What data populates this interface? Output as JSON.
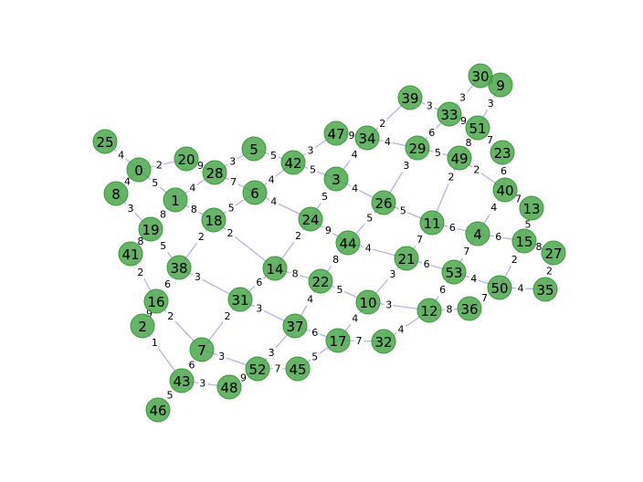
{
  "graph": {
    "node_color": "#4ca64c",
    "edge_color": "#b3b3ee",
    "nodes": [
      {
        "id": "0"
      },
      {
        "id": "1"
      },
      {
        "id": "2"
      },
      {
        "id": "4"
      },
      {
        "id": "5"
      },
      {
        "id": "6"
      },
      {
        "id": "7"
      },
      {
        "id": "8"
      },
      {
        "id": "9"
      },
      {
        "id": "10"
      },
      {
        "id": "11"
      },
      {
        "id": "12"
      },
      {
        "id": "13"
      },
      {
        "id": "14"
      },
      {
        "id": "15"
      },
      {
        "id": "16"
      },
      {
        "id": "17"
      },
      {
        "id": "18"
      },
      {
        "id": "19"
      },
      {
        "id": "20"
      },
      {
        "id": "21"
      },
      {
        "id": "22"
      },
      {
        "id": "23"
      },
      {
        "id": "24"
      },
      {
        "id": "25"
      },
      {
        "id": "26"
      },
      {
        "id": "27"
      },
      {
        "id": "28"
      },
      {
        "id": "29"
      },
      {
        "id": "30"
      },
      {
        "id": "31"
      },
      {
        "id": "32"
      },
      {
        "id": "33"
      },
      {
        "id": "34"
      },
      {
        "id": "35"
      },
      {
        "id": "36"
      },
      {
        "id": "37"
      },
      {
        "id": "38"
      },
      {
        "id": "39"
      },
      {
        "id": "40"
      },
      {
        "id": "41"
      },
      {
        "id": "42"
      },
      {
        "id": "43"
      },
      {
        "id": "44"
      },
      {
        "id": "45"
      },
      {
        "id": "46"
      },
      {
        "id": "47"
      },
      {
        "id": "48"
      },
      {
        "id": "49"
      },
      {
        "id": "50"
      },
      {
        "id": "51"
      },
      {
        "id": "52"
      },
      {
        "id": "53"
      },
      {
        "id": "3"
      }
    ],
    "edges": [
      {
        "s": "25",
        "t": "0",
        "w": "4"
      },
      {
        "s": "0",
        "t": "20",
        "w": "2"
      },
      {
        "s": "0",
        "t": "1",
        "w": "5"
      },
      {
        "s": "0",
        "t": "8",
        "w": "4"
      },
      {
        "s": "20",
        "t": "28",
        "w": "9"
      },
      {
        "s": "28",
        "t": "5",
        "w": "3"
      },
      {
        "s": "1",
        "t": "28",
        "w": "4"
      },
      {
        "s": "1",
        "t": "19",
        "w": "8"
      },
      {
        "s": "1",
        "t": "18",
        "w": "8"
      },
      {
        "s": "8",
        "t": "19",
        "w": "3"
      },
      {
        "s": "19",
        "t": "41",
        "w": "8"
      },
      {
        "s": "19",
        "t": "38",
        "w": "5"
      },
      {
        "s": "28",
        "t": "6",
        "w": "7"
      },
      {
        "s": "5",
        "t": "42",
        "w": "5"
      },
      {
        "s": "42",
        "t": "47",
        "w": "3"
      },
      {
        "s": "6",
        "t": "42",
        "w": "4"
      },
      {
        "s": "18",
        "t": "6",
        "w": "5"
      },
      {
        "s": "6",
        "t": "24",
        "w": "4"
      },
      {
        "s": "18",
        "t": "38",
        "w": "2"
      },
      {
        "s": "18",
        "t": "14",
        "w": "2"
      },
      {
        "s": "41",
        "t": "16",
        "w": "2"
      },
      {
        "s": "38",
        "t": "16",
        "w": "6"
      },
      {
        "s": "38",
        "t": "31",
        "w": "3"
      },
      {
        "s": "16",
        "t": "2",
        "w": "9"
      },
      {
        "s": "16",
        "t": "7",
        "w": "2"
      },
      {
        "s": "2",
        "t": "43",
        "w": "1"
      },
      {
        "s": "43",
        "t": "46",
        "w": "5"
      },
      {
        "s": "7",
        "t": "43",
        "w": "6"
      },
      {
        "s": "43",
        "t": "48",
        "w": "3"
      },
      {
        "s": "7",
        "t": "52",
        "w": "3"
      },
      {
        "s": "31",
        "t": "7",
        "w": "2"
      },
      {
        "s": "48",
        "t": "52",
        "w": "9"
      },
      {
        "s": "52",
        "t": "45",
        "w": "7"
      },
      {
        "s": "52",
        "t": "37",
        "w": "3"
      },
      {
        "s": "31",
        "t": "37",
        "w": "3"
      },
      {
        "s": "14",
        "t": "31",
        "w": "6"
      },
      {
        "s": "24",
        "t": "14",
        "w": "2"
      },
      {
        "s": "14",
        "t": "22",
        "w": "8"
      },
      {
        "s": "22",
        "t": "37",
        "w": "4"
      },
      {
        "s": "37",
        "t": "17",
        "w": "6"
      },
      {
        "s": "45",
        "t": "17",
        "w": "5"
      },
      {
        "s": "17",
        "t": "32",
        "w": "7"
      },
      {
        "s": "10",
        "t": "17",
        "w": "4"
      },
      {
        "s": "22",
        "t": "10",
        "w": "5"
      },
      {
        "s": "44",
        "t": "22",
        "w": "8"
      },
      {
        "s": "24",
        "t": "44",
        "w": "9"
      },
      {
        "s": "3",
        "t": "24",
        "w": "5"
      },
      {
        "s": "42",
        "t": "3",
        "w": "5"
      },
      {
        "s": "47",
        "t": "34",
        "w": "9"
      },
      {
        "s": "34",
        "t": "3",
        "w": "4"
      },
      {
        "s": "34",
        "t": "39",
        "w": "2"
      },
      {
        "s": "34",
        "t": "29",
        "w": "4"
      },
      {
        "s": "39",
        "t": "33",
        "w": "3"
      },
      {
        "s": "3",
        "t": "26",
        "w": "4"
      },
      {
        "s": "29",
        "t": "26",
        "w": "3"
      },
      {
        "s": "29",
        "t": "33",
        "w": "6"
      },
      {
        "s": "29",
        "t": "49",
        "w": "5"
      },
      {
        "s": "33",
        "t": "30",
        "w": "3"
      },
      {
        "s": "33",
        "t": "51",
        "w": "9"
      },
      {
        "s": "30",
        "t": "9",
        "w": "3"
      },
      {
        "s": "9",
        "t": "51",
        "w": "3"
      },
      {
        "s": "51",
        "t": "49",
        "w": "8"
      },
      {
        "s": "51",
        "t": "23",
        "w": "7"
      },
      {
        "s": "49",
        "t": "11",
        "w": "2"
      },
      {
        "s": "49",
        "t": "40",
        "w": "2"
      },
      {
        "s": "23",
        "t": "40",
        "w": "6"
      },
      {
        "s": "40",
        "t": "13",
        "w": "7"
      },
      {
        "s": "40",
        "t": "4",
        "w": "4"
      },
      {
        "s": "26",
        "t": "11",
        "w": "5"
      },
      {
        "s": "26",
        "t": "44",
        "w": "5"
      },
      {
        "s": "11",
        "t": "4",
        "w": "6"
      },
      {
        "s": "11",
        "t": "21",
        "w": "7"
      },
      {
        "s": "44",
        "t": "21",
        "w": "4"
      },
      {
        "s": "4",
        "t": "15",
        "w": "6"
      },
      {
        "s": "4",
        "t": "53",
        "w": "7"
      },
      {
        "s": "13",
        "t": "15",
        "w": "5"
      },
      {
        "s": "15",
        "t": "27",
        "w": "8"
      },
      {
        "s": "15",
        "t": "50",
        "w": "2"
      },
      {
        "s": "27",
        "t": "35",
        "w": "2"
      },
      {
        "s": "50",
        "t": "35",
        "w": "4"
      },
      {
        "s": "53",
        "t": "50",
        "w": "4"
      },
      {
        "s": "50",
        "t": "36",
        "w": "7"
      },
      {
        "s": "21",
        "t": "53",
        "w": "6"
      },
      {
        "s": "21",
        "t": "10",
        "w": "3"
      },
      {
        "s": "10",
        "t": "12",
        "w": "3"
      },
      {
        "s": "12",
        "t": "36",
        "w": "8"
      },
      {
        "s": "53",
        "t": "12",
        "w": "6"
      },
      {
        "s": "32",
        "t": "12",
        "w": "4"
      }
    ]
  }
}
